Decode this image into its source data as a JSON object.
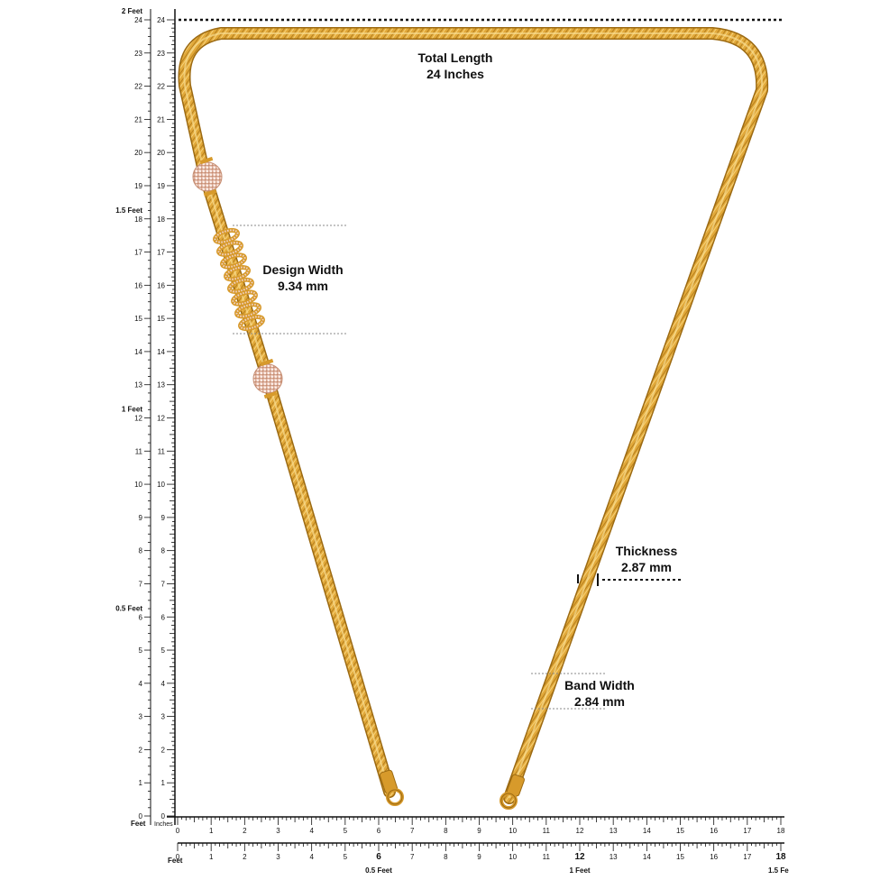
{
  "vertical_ruler": {
    "unit_label_top": "2 Feet",
    "inch_labels": [
      "0",
      "1",
      "2",
      "3",
      "4",
      "5",
      "6",
      "7",
      "8",
      "9",
      "10",
      "11",
      "12",
      "13",
      "14",
      "15",
      "16",
      "17",
      "18",
      "19",
      "20",
      "21",
      "22",
      "23",
      "24"
    ],
    "feet_marks": [
      {
        "inch": 6,
        "label": "0.5 Feet"
      },
      {
        "inch": 12,
        "label": "1 Feet"
      },
      {
        "inch": 18,
        "label": "1.5 Feet"
      },
      {
        "inch": 24,
        "label": "2 Feet"
      }
    ],
    "bottom_left_label": "Feet"
  },
  "horizontal_ruler": {
    "inches_label": "Inches",
    "feet_label": "Feet",
    "inch_labels": [
      "0",
      "1",
      "2",
      "3",
      "4",
      "5",
      "6",
      "7",
      "8",
      "9",
      "10",
      "11",
      "12",
      "13",
      "14",
      "15",
      "16",
      "17",
      "18"
    ],
    "feet_marks": [
      {
        "inch": 6,
        "label": "0.5 Feet"
      },
      {
        "inch": 12,
        "label": "1 Feet"
      },
      {
        "inch": 18,
        "label": "1.5 Fe"
      }
    ]
  },
  "annotations": {
    "total_length": {
      "title": "Total Length",
      "value": "24 Inches"
    },
    "design_width": {
      "title": "Design Width",
      "value": "9.34 mm"
    },
    "thickness": {
      "title": "Thickness",
      "value": "2.87 mm"
    },
    "band_width": {
      "title": "Band Width",
      "value": "2.84 mm"
    }
  },
  "colors": {
    "gold": "#E2A93A",
    "gold_dark": "#B57F1E",
    "gold_light": "#F6D27A",
    "stone": "#F0D2C8"
  }
}
